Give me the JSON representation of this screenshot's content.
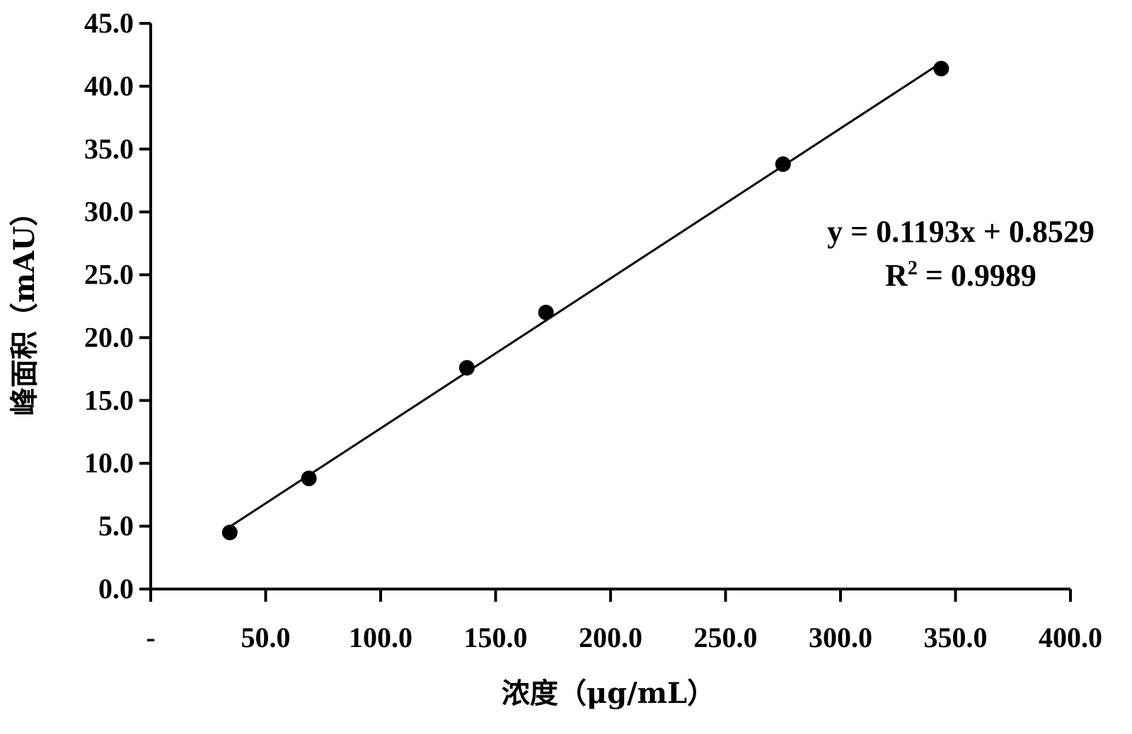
{
  "chart_data": {
    "type": "scatter",
    "xlabel": "浓度（μg/mL）",
    "ylabel": "峰面积（mAU）",
    "xlim": [
      0,
      400
    ],
    "ylim": [
      0,
      45
    ],
    "x_ticks": [
      0,
      50,
      100,
      150,
      200,
      250,
      300,
      350,
      400
    ],
    "x_tick_labels": [
      "-",
      "50.0",
      "100.0",
      "150.0",
      "200.0",
      "250.0",
      "300.0",
      "350.0",
      "400.0"
    ],
    "y_ticks": [
      0,
      5,
      10,
      15,
      20,
      25,
      30,
      35,
      40,
      45
    ],
    "y_tick_labels": [
      "0.0",
      "5.0",
      "10.0",
      "15.0",
      "20.0",
      "25.0",
      "30.0",
      "35.0",
      "40.0",
      "45.0"
    ],
    "series": [
      {
        "x": [
          34.4,
          68.8,
          137.5,
          171.9,
          275.0,
          343.8
        ],
        "y": [
          4.5,
          8.8,
          17.6,
          22.0,
          33.8,
          41.4
        ],
        "color": "#000000"
      }
    ],
    "trendline": {
      "slope": 0.1193,
      "intercept": 0.8529,
      "x_range": [
        34.4,
        343.8
      ],
      "color": "#000000"
    },
    "annotations": {
      "equation": "y = 0.1193x + 0.8529",
      "r2_prefix": "R",
      "r2_sup": "2",
      "r2_value": " = 0.9989"
    },
    "grid": false,
    "legend": "none"
  }
}
